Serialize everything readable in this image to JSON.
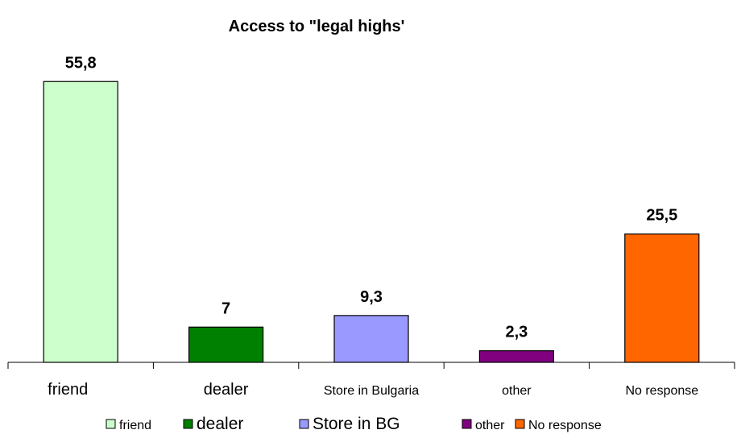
{
  "chart_data": {
    "type": "bar",
    "title": "Access to \"legal highs'",
    "xlabel": "",
    "ylabel": "",
    "ylim": [
      0,
      56
    ],
    "grid": false,
    "legend_position": "bottom",
    "categories": [
      "friend",
      "dealer",
      "Store in Bulgaria",
      "other",
      "No response"
    ],
    "values": [
      55.8,
      7,
      9.3,
      2.3,
      25.5
    ],
    "value_labels": [
      "55,8",
      "7",
      "9,3",
      "2,3",
      "25,5"
    ],
    "colors": [
      "#CCFFCC",
      "#008000",
      "#9999FF",
      "#800080",
      "#FF6600"
    ],
    "legend": [
      "friend",
      "dealer",
      "Store in BG",
      "other",
      "No response"
    ]
  }
}
